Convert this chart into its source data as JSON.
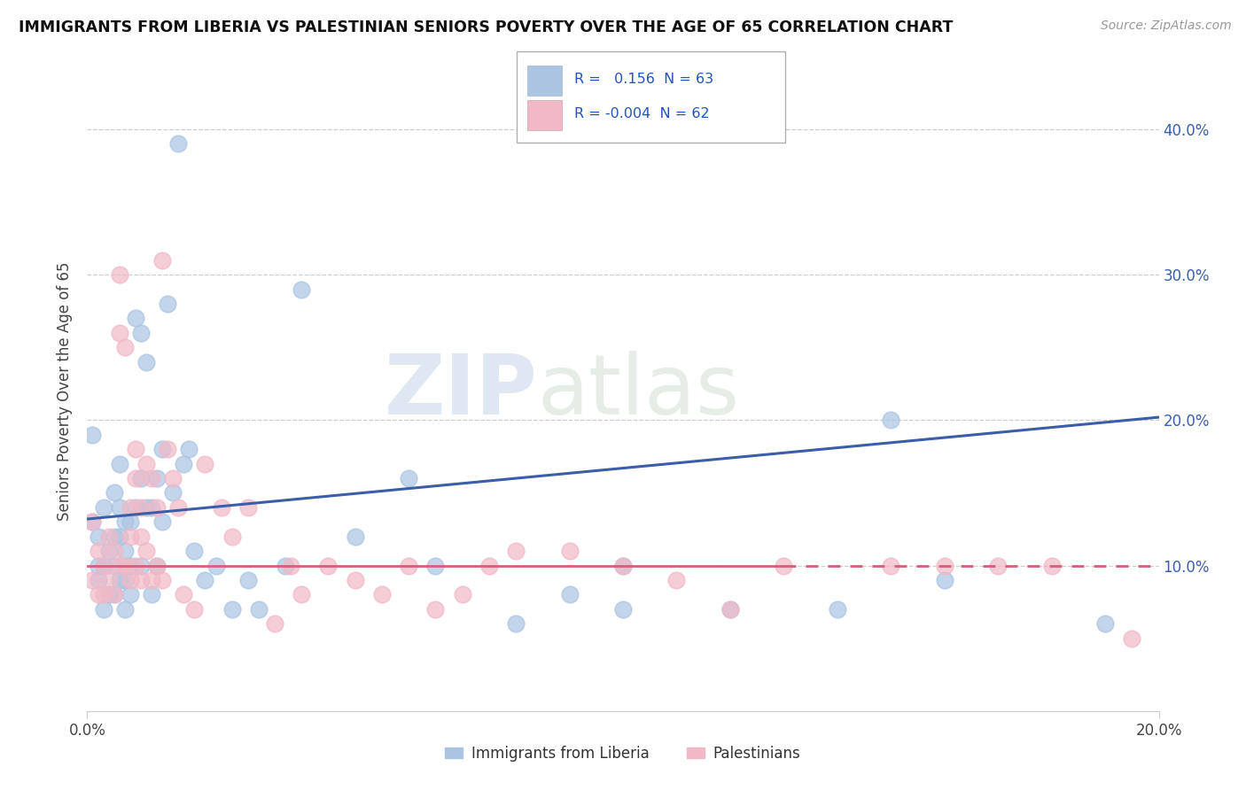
{
  "title": "IMMIGRANTS FROM LIBERIA VS PALESTINIAN SENIORS POVERTY OVER THE AGE OF 65 CORRELATION CHART",
  "source": "Source: ZipAtlas.com",
  "ylabel": "Seniors Poverty Over the Age of 65",
  "watermark_zip": "ZIP",
  "watermark_atlas": "atlas",
  "legend_r1": "R =   0.156  N = 63",
  "legend_r2": "R = -0.004  N = 62",
  "legend_label1": "Immigrants from Liberia",
  "legend_label2": "Palestinians",
  "liberia_color": "#aac4e2",
  "liberia_line_color": "#3a5fa8",
  "palestinian_color": "#f2b8c6",
  "palestinian_line_color": "#d4607a",
  "xlim": [
    0.0,
    0.2
  ],
  "ylim": [
    0.0,
    0.44
  ],
  "yticks": [
    0.1,
    0.2,
    0.3,
    0.4
  ],
  "ytick_labels": [
    "10.0%",
    "20.0%",
    "30.0%",
    "40.0%"
  ],
  "background_color": "#ffffff",
  "grid_color": "#c8c8c8",
  "liberia_line_x0": 0.0,
  "liberia_line_y0": 0.132,
  "liberia_line_x1": 0.2,
  "liberia_line_y1": 0.202,
  "palestinian_line_x0": 0.0,
  "palestinian_line_y0": 0.1,
  "palestinian_line_x1": 0.2,
  "palestinian_line_y1": 0.1,
  "liberia_x": [
    0.001,
    0.001,
    0.002,
    0.002,
    0.002,
    0.003,
    0.003,
    0.003,
    0.004,
    0.004,
    0.005,
    0.005,
    0.005,
    0.005,
    0.006,
    0.006,
    0.006,
    0.006,
    0.007,
    0.007,
    0.007,
    0.007,
    0.008,
    0.008,
    0.008,
    0.009,
    0.009,
    0.01,
    0.01,
    0.01,
    0.011,
    0.011,
    0.012,
    0.012,
    0.013,
    0.013,
    0.014,
    0.014,
    0.015,
    0.016,
    0.017,
    0.018,
    0.019,
    0.02,
    0.022,
    0.024,
    0.027,
    0.03,
    0.032,
    0.037,
    0.04,
    0.05,
    0.06,
    0.065,
    0.08,
    0.09,
    0.1,
    0.1,
    0.12,
    0.14,
    0.15,
    0.16,
    0.19
  ],
  "liberia_y": [
    0.19,
    0.13,
    0.1,
    0.12,
    0.09,
    0.14,
    0.1,
    0.07,
    0.11,
    0.08,
    0.15,
    0.12,
    0.1,
    0.08,
    0.17,
    0.14,
    0.12,
    0.09,
    0.13,
    0.11,
    0.09,
    0.07,
    0.13,
    0.1,
    0.08,
    0.27,
    0.14,
    0.26,
    0.16,
    0.1,
    0.24,
    0.14,
    0.14,
    0.08,
    0.16,
    0.1,
    0.18,
    0.13,
    0.28,
    0.15,
    0.39,
    0.17,
    0.18,
    0.11,
    0.09,
    0.1,
    0.07,
    0.09,
    0.07,
    0.1,
    0.29,
    0.12,
    0.16,
    0.1,
    0.06,
    0.08,
    0.07,
    0.1,
    0.07,
    0.07,
    0.2,
    0.09,
    0.06
  ],
  "palestinian_x": [
    0.001,
    0.001,
    0.002,
    0.002,
    0.003,
    0.003,
    0.004,
    0.004,
    0.005,
    0.005,
    0.006,
    0.006,
    0.006,
    0.007,
    0.007,
    0.008,
    0.008,
    0.008,
    0.009,
    0.009,
    0.009,
    0.01,
    0.01,
    0.01,
    0.011,
    0.011,
    0.012,
    0.012,
    0.013,
    0.013,
    0.014,
    0.014,
    0.015,
    0.016,
    0.017,
    0.018,
    0.02,
    0.022,
    0.025,
    0.027,
    0.03,
    0.035,
    0.038,
    0.04,
    0.045,
    0.05,
    0.055,
    0.06,
    0.065,
    0.07,
    0.075,
    0.08,
    0.09,
    0.1,
    0.11,
    0.12,
    0.13,
    0.15,
    0.16,
    0.17,
    0.18,
    0.195
  ],
  "palestinian_y": [
    0.13,
    0.09,
    0.11,
    0.08,
    0.1,
    0.08,
    0.12,
    0.09,
    0.11,
    0.08,
    0.3,
    0.26,
    0.1,
    0.25,
    0.1,
    0.14,
    0.12,
    0.09,
    0.18,
    0.16,
    0.1,
    0.14,
    0.12,
    0.09,
    0.17,
    0.11,
    0.16,
    0.09,
    0.14,
    0.1,
    0.31,
    0.09,
    0.18,
    0.16,
    0.14,
    0.08,
    0.07,
    0.17,
    0.14,
    0.12,
    0.14,
    0.06,
    0.1,
    0.08,
    0.1,
    0.09,
    0.08,
    0.1,
    0.07,
    0.08,
    0.1,
    0.11,
    0.11,
    0.1,
    0.09,
    0.07,
    0.1,
    0.1,
    0.1,
    0.1,
    0.1,
    0.05
  ]
}
